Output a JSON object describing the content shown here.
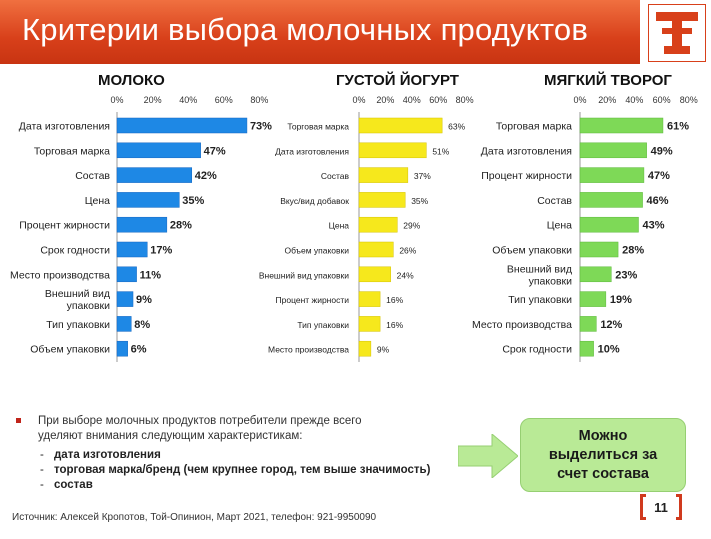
{
  "header": {
    "title": "Критерии выбора молочных продуктов"
  },
  "chart_data": [
    {
      "type": "bar",
      "title": "МОЛОКО",
      "categories": [
        "Дата изготовления",
        "Торговая марка",
        "Состав",
        "Цена",
        "Процент жирности",
        "Срок годности",
        "Место производства",
        "Внешний вид упаковки",
        "Тип упаковки",
        "Объем упаковки"
      ],
      "values": [
        73,
        47,
        42,
        35,
        28,
        17,
        11,
        9,
        8,
        6
      ],
      "value_labels": [
        "73%",
        "47%",
        "42%",
        "35%",
        "28%",
        "17%",
        "11%",
        "9%",
        "8%",
        "6%"
      ],
      "xticks": [
        "0%",
        "20%",
        "40%",
        "60%",
        "80%"
      ],
      "xlim": [
        0,
        80
      ],
      "orientation": "horizontal",
      "color": "#1e88e5"
    },
    {
      "type": "bar",
      "title": "ГУСТОЙ ЙОГУРТ",
      "categories": [
        "Торговая марка",
        "Дата изготовления",
        "Состав",
        "Вкус/вид добавок",
        "Цена",
        "Объем упаковки",
        "Внешний вид упаковки",
        "Процент жирности",
        "Тип упаковки",
        "Место производства"
      ],
      "values": [
        63,
        51,
        37,
        35,
        29,
        26,
        24,
        16,
        16,
        9
      ],
      "value_labels": [
        "63%",
        "51%",
        "37%",
        "35%",
        "29%",
        "26%",
        "24%",
        "16%",
        "16%",
        "9%"
      ],
      "xticks": [
        "0%",
        "20%",
        "40%",
        "60%",
        "80%"
      ],
      "xlim": [
        0,
        80
      ],
      "orientation": "horizontal",
      "color": "#f6e81c"
    },
    {
      "type": "bar",
      "title": "МЯГКИЙ ТВОРОГ",
      "categories": [
        "Торговая марка",
        "Дата изготовления",
        "Процент жирности",
        "Состав",
        "Цена",
        "Объем упаковки",
        "Внешний вид упаковки",
        "Тип упаковки",
        "Место производства",
        "Срок годности"
      ],
      "values": [
        61,
        49,
        47,
        46,
        43,
        28,
        23,
        19,
        12,
        10
      ],
      "value_labels": [
        "61%",
        "49%",
        "47%",
        "46%",
        "43%",
        "28%",
        "23%",
        "19%",
        "12%",
        "10%"
      ],
      "xticks": [
        "0%",
        "20%",
        "40%",
        "60%",
        "80%"
      ],
      "xlim": [
        0,
        80
      ],
      "orientation": "horizontal",
      "color": "#7ed957"
    }
  ],
  "summary": {
    "text": "При выборе молочных продуктов потребители прежде всего уделяют внимания следующим  характеристикам:",
    "items": [
      "дата изготовления",
      "торговая марка/бренд (чем крупнее город, тем выше значимость)",
      "состав"
    ],
    "bullet_color": "#c0241a"
  },
  "callout": {
    "text": "Можно выделиться за счет состава",
    "color": "#b9ea96"
  },
  "footer": {
    "source": "Источник: Алексей Кропотов, Той-Опинион, Март 2021, телефон: 921-9950090",
    "page": "11"
  },
  "colors": {
    "header": "#d8401a",
    "accent": "#d03a1e"
  }
}
